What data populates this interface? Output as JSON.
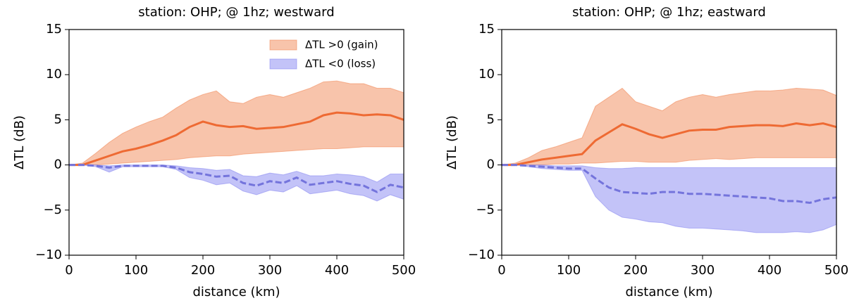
{
  "chart_data": [
    {
      "type": "band-line",
      "title": "station: OHP; @ 1hz; westward",
      "xlabel": "distance (km)",
      "ylabel": "ΔTL (dB)",
      "x": [
        0,
        20,
        40,
        60,
        80,
        100,
        120,
        140,
        160,
        180,
        200,
        220,
        240,
        260,
        280,
        300,
        320,
        340,
        360,
        380,
        400,
        420,
        440,
        460,
        480,
        500
      ],
      "xlim": [
        0,
        500
      ],
      "xticks": [
        0,
        100,
        200,
        300,
        400,
        500
      ],
      "ylim": [
        -10,
        15
      ],
      "yticks": [
        {
          "value": -10,
          "label": "−10"
        },
        {
          "value": -5,
          "label": "−5"
        },
        0,
        5,
        10,
        15
      ],
      "legend": "upper right",
      "series": [
        {
          "name": "ΔTL >0 (gain)",
          "kind": "band",
          "color": "#f07c45",
          "upper": [
            0,
            0.2,
            1.3,
            2.5,
            3.5,
            4.2,
            4.8,
            5.3,
            6.3,
            7.2,
            7.8,
            8.2,
            7.0,
            6.8,
            7.5,
            7.8,
            7.5,
            8.0,
            8.5,
            9.2,
            9.3,
            9.0,
            9.0,
            8.5,
            8.5,
            8.0
          ],
          "lower": [
            0,
            0,
            0,
            0.1,
            0.2,
            0.3,
            0.4,
            0.5,
            0.6,
            0.8,
            0.9,
            1.0,
            1.0,
            1.2,
            1.3,
            1.4,
            1.5,
            1.6,
            1.7,
            1.8,
            1.8,
            1.9,
            2.0,
            2.0,
            2.0,
            2.0
          ]
        },
        {
          "name": "ΔTL <0 (loss)",
          "kind": "band",
          "color": "#7b7bef",
          "upper": [
            0,
            0,
            0,
            -0.1,
            0,
            0,
            0,
            0,
            -0.1,
            -0.3,
            -0.4,
            -0.6,
            -0.5,
            -1.2,
            -1.3,
            -0.9,
            -1.1,
            -0.7,
            -1.2,
            -1.2,
            -1.0,
            -1.1,
            -1.3,
            -1.9,
            -1.0,
            -1.0
          ],
          "lower": [
            0,
            0,
            -0.2,
            -0.8,
            -0.2,
            -0.2,
            -0.2,
            -0.2,
            -0.5,
            -1.4,
            -1.7,
            -2.2,
            -2.0,
            -2.9,
            -3.3,
            -2.8,
            -3.0,
            -2.3,
            -3.2,
            -3.0,
            -2.8,
            -3.2,
            -3.4,
            -4.0,
            -3.3,
            -3.8
          ]
        },
        {
          "kind": "line",
          "dash": false,
          "color": "#ee6a33",
          "values": [
            0,
            0,
            0.5,
            1,
            1.5,
            1.8,
            2.2,
            2.7,
            3.3,
            4.2,
            4.8,
            4.4,
            4.2,
            4.3,
            4.0,
            4.1,
            4.2,
            4.5,
            4.8,
            5.5,
            5.8,
            5.7,
            5.5,
            5.6,
            5.5,
            5.0
          ]
        },
        {
          "kind": "line",
          "dash": true,
          "color": "#7474dc",
          "values": [
            0,
            0,
            -0.1,
            -0.3,
            -0.1,
            -0.1,
            -0.1,
            -0.1,
            -0.3,
            -0.8,
            -1.0,
            -1.3,
            -1.2,
            -2.0,
            -2.3,
            -1.8,
            -2.0,
            -1.4,
            -2.2,
            -2.0,
            -1.8,
            -2.1,
            -2.3,
            -3.0,
            -2.2,
            -2.5
          ]
        }
      ]
    },
    {
      "type": "band-line",
      "title": "station: OHP; @ 1hz; eastward",
      "xlabel": "distance (km)",
      "ylabel": "ΔTL (dB)",
      "x": [
        0,
        20,
        40,
        60,
        80,
        100,
        120,
        140,
        160,
        180,
        200,
        220,
        240,
        260,
        280,
        300,
        320,
        340,
        360,
        380,
        400,
        420,
        440,
        460,
        480,
        500
      ],
      "xlim": [
        0,
        500
      ],
      "xticks": [
        0,
        100,
        200,
        300,
        400,
        500
      ],
      "ylim": [
        -10,
        15
      ],
      "yticks": [
        {
          "value": -10,
          "label": "−10"
        },
        {
          "value": -5,
          "label": "−5"
        },
        0,
        5,
        10,
        15
      ],
      "series": [
        {
          "kind": "band",
          "color": "#f07c45",
          "upper": [
            0,
            0.2,
            0.8,
            1.6,
            2.0,
            2.5,
            3.0,
            6.5,
            7.5,
            8.5,
            7.0,
            6.5,
            6.0,
            7.0,
            7.5,
            7.8,
            7.5,
            7.8,
            8.0,
            8.2,
            8.2,
            8.3,
            8.5,
            8.4,
            8.3,
            7.7
          ],
          "lower": [
            0,
            0,
            0,
            0,
            0.1,
            0.1,
            0.2,
            0.2,
            0.3,
            0.4,
            0.4,
            0.3,
            0.3,
            0.3,
            0.5,
            0.6,
            0.7,
            0.6,
            0.7,
            0.8,
            0.8,
            0.8,
            0.8,
            0.8,
            0.8,
            0.8
          ]
        },
        {
          "kind": "band",
          "color": "#7b7bef",
          "upper": [
            0,
            0,
            0,
            0,
            -0.1,
            -0.1,
            -0.1,
            -0.3,
            -0.4,
            -0.4,
            -0.3,
            -0.3,
            -0.3,
            -0.3,
            -0.3,
            -0.3,
            -0.3,
            -0.3,
            -0.3,
            -0.3,
            -0.3,
            -0.3,
            -0.3,
            -0.3,
            -0.3,
            -0.3
          ],
          "lower": [
            0,
            0,
            -0.2,
            -0.4,
            -0.5,
            -0.6,
            -0.6,
            -3.5,
            -5.0,
            -5.8,
            -6.0,
            -6.3,
            -6.4,
            -6.8,
            -7.0,
            -7.0,
            -7.1,
            -7.2,
            -7.3,
            -7.5,
            -7.5,
            -7.5,
            -7.4,
            -7.5,
            -7.2,
            -6.6
          ]
        },
        {
          "kind": "line",
          "dash": false,
          "color": "#ee6a33",
          "values": [
            0,
            0,
            0.3,
            0.6,
            0.8,
            1.0,
            1.2,
            2.7,
            3.6,
            4.5,
            4.0,
            3.4,
            3.0,
            3.4,
            3.8,
            3.9,
            3.9,
            4.2,
            4.3,
            4.4,
            4.4,
            4.3,
            4.6,
            4.4,
            4.6,
            4.2
          ]
        },
        {
          "kind": "line",
          "dash": true,
          "color": "#7474dc",
          "values": [
            0,
            0,
            -0.1,
            -0.2,
            -0.3,
            -0.4,
            -0.4,
            -1.5,
            -2.5,
            -3.0,
            -3.1,
            -3.2,
            -3.0,
            -3.0,
            -3.2,
            -3.2,
            -3.3,
            -3.4,
            -3.5,
            -3.6,
            -3.7,
            -4.0,
            -4.0,
            -4.2,
            -3.8,
            -3.6
          ]
        }
      ]
    }
  ]
}
